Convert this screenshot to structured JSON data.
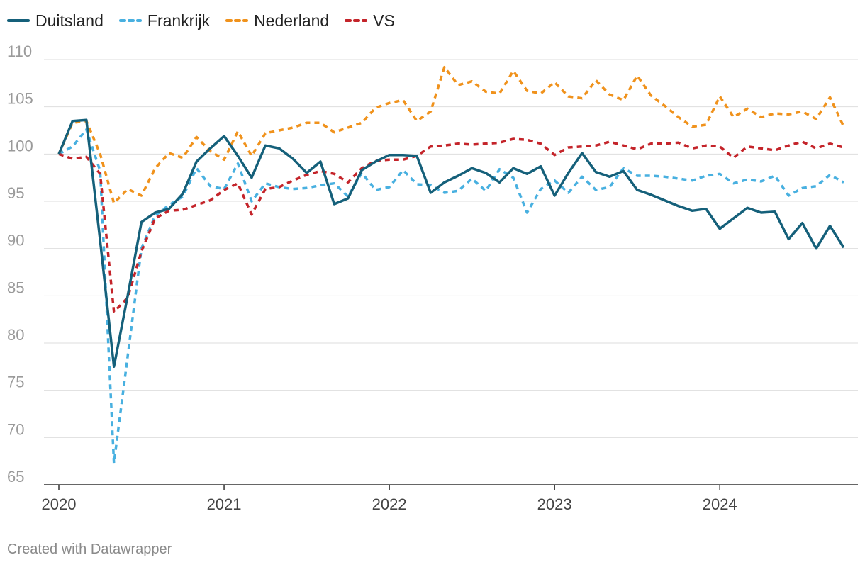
{
  "legend": [
    {
      "name": "Duitsland",
      "color": "#15607a",
      "dash": "solid"
    },
    {
      "name": "Frankrijk",
      "color": "#48b0e0",
      "dash": "dashed"
    },
    {
      "name": "Nederland",
      "color": "#f0921c",
      "dash": "dashed"
    },
    {
      "name": "VS",
      "color": "#c4242a",
      "dash": "dashed"
    }
  ],
  "footer": "Created with Datawrapper",
  "chart_data": {
    "type": "line",
    "title": "",
    "xlabel": "",
    "ylabel": "",
    "ylim": [
      65,
      110
    ],
    "yticks": [
      65,
      70,
      75,
      80,
      85,
      90,
      95,
      100,
      105,
      110
    ],
    "xticks": [
      "2020",
      "2021",
      "2022",
      "2023",
      "2024"
    ],
    "x_start": "2020-01",
    "x_step": "month",
    "grid": "horizontal",
    "legend_position": "top-left",
    "series": [
      {
        "name": "Duitsland",
        "color": "#15607a",
        "dash": "solid",
        "values": [
          100,
          103.5,
          103.6,
          90.8,
          77.5,
          85.0,
          92.8,
          93.8,
          94.2,
          95.8,
          99.2,
          100.6,
          101.9,
          99.8,
          97.5,
          100.9,
          100.6,
          99.5,
          98.0,
          99.2,
          94.7,
          95.3,
          98.3,
          99.2,
          99.9,
          99.9,
          99.8,
          95.9,
          97.0,
          97.7,
          98.5,
          98.0,
          97.0,
          98.5,
          97.9,
          98.7,
          95.6,
          98.0,
          100.1,
          98.1,
          97.6,
          98.2,
          96.2,
          95.7,
          95.1,
          94.5,
          94.0,
          94.2,
          92.1,
          93.2,
          94.3,
          93.8,
          93.9,
          91.0,
          92.7,
          90.0,
          92.4,
          90.1
        ]
      },
      {
        "name": "Frankrijk",
        "color": "#48b0e0",
        "dash": "dashed",
        "values": [
          100,
          100.8,
          102.6,
          98.2,
          67.3,
          78.6,
          90.0,
          93.5,
          94.6,
          95.5,
          98.5,
          96.6,
          96.3,
          99.0,
          95.0,
          96.9,
          96.5,
          96.3,
          96.4,
          96.7,
          96.9,
          95.5,
          98.0,
          96.2,
          96.5,
          98.3,
          96.8,
          96.7,
          95.9,
          96.1,
          97.4,
          96.1,
          98.4,
          97.5,
          93.8,
          96.3,
          97.2,
          95.9,
          97.6,
          96.2,
          96.5,
          98.5,
          97.7,
          97.7,
          97.6,
          97.4,
          97.2,
          97.7,
          97.9,
          96.9,
          97.3,
          97.1,
          97.7,
          95.6,
          96.4,
          96.6,
          97.8,
          97.0
        ]
      },
      {
        "name": "Nederland",
        "color": "#f0921c",
        "dash": "dashed",
        "values": [
          100,
          103.3,
          103.5,
          100.0,
          94.8,
          96.3,
          95.6,
          98.5,
          100.1,
          99.6,
          101.8,
          100.3,
          99.4,
          102.4,
          99.8,
          102.2,
          102.5,
          102.8,
          103.3,
          103.3,
          102.3,
          102.8,
          103.3,
          104.9,
          105.4,
          105.7,
          103.5,
          104.5,
          109.2,
          107.3,
          107.7,
          106.6,
          106.4,
          108.8,
          106.7,
          106.4,
          107.6,
          106.1,
          105.9,
          107.8,
          106.3,
          105.7,
          108.3,
          106.2,
          105.1,
          103.9,
          102.9,
          103.1,
          106.1,
          103.9,
          104.8,
          103.9,
          104.3,
          104.2,
          104.5,
          103.7,
          106.0,
          102.9
        ]
      },
      {
        "name": "VS",
        "color": "#c4242a",
        "dash": "dashed",
        "values": [
          100,
          99.5,
          99.7,
          97.9,
          83.3,
          84.8,
          89.7,
          93.2,
          94.0,
          94.1,
          94.6,
          95.1,
          96.2,
          96.9,
          93.6,
          96.3,
          96.5,
          97.2,
          97.8,
          98.2,
          97.9,
          97.0,
          98.5,
          99.3,
          99.4,
          99.4,
          99.8,
          100.8,
          100.9,
          101.1,
          101.0,
          101.1,
          101.2,
          101.6,
          101.5,
          101.1,
          99.9,
          100.7,
          100.8,
          100.9,
          101.3,
          100.9,
          100.5,
          101.1,
          101.1,
          101.2,
          100.6,
          100.9,
          100.8,
          99.6,
          100.8,
          100.6,
          100.4,
          100.9,
          101.3,
          100.6,
          101.1,
          100.7
        ]
      }
    ]
  }
}
